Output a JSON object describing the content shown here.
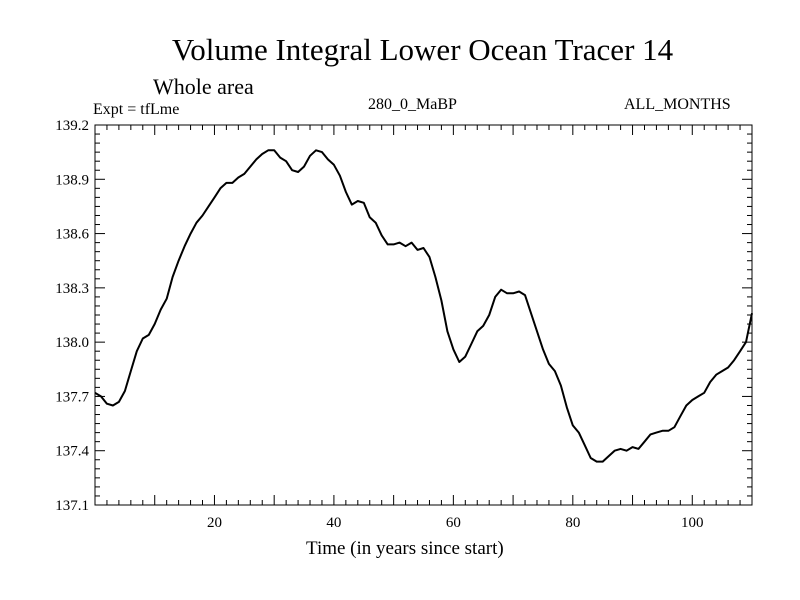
{
  "chart_data": {
    "type": "line",
    "title": "Volume Integral Lower Ocean Tracer 14",
    "subtitle": "Whole area",
    "experiment_label": "Expt = tfLme",
    "period_label": "280_0_MaBP",
    "months_label": "ALL_MONTHS",
    "xlabel": "Time (in years since start)",
    "ylabel": "",
    "xlim": [
      0,
      110
    ],
    "ylim": [
      137.1,
      139.2
    ],
    "x_ticks": [
      20,
      40,
      60,
      80,
      100
    ],
    "x_tick_labels": [
      "20",
      "40",
      "60",
      "80",
      "100"
    ],
    "y_ticks": [
      137.1,
      137.4,
      137.7,
      138.0,
      138.3,
      138.6,
      138.9,
      139.2
    ],
    "y_tick_labels": [
      "137.1",
      "137.4",
      "137.7",
      "138.0",
      "138.3",
      "138.6",
      "138.9",
      "139.2"
    ],
    "series": [
      {
        "name": "tfLme",
        "color": "#000000",
        "x": [
          0,
          1,
          2,
          3,
          4,
          5,
          6,
          7,
          8,
          9,
          10,
          11,
          12,
          13,
          14,
          15,
          16,
          17,
          18,
          19,
          20,
          21,
          22,
          23,
          24,
          25,
          26,
          27,
          28,
          29,
          30,
          31,
          32,
          33,
          34,
          35,
          36,
          37,
          38,
          39,
          40,
          41,
          42,
          43,
          44,
          45,
          46,
          47,
          48,
          49,
          50,
          51,
          52,
          53,
          54,
          55,
          56,
          57,
          58,
          59,
          60,
          61,
          62,
          63,
          64,
          65,
          66,
          67,
          68,
          69,
          70,
          71,
          72,
          73,
          74,
          75,
          76,
          77,
          78,
          79,
          80,
          81,
          82,
          83,
          84,
          85,
          86,
          87,
          88,
          89,
          90,
          91,
          92,
          93,
          94,
          95,
          96,
          97,
          98,
          99,
          100,
          101,
          102,
          103,
          104,
          105,
          106,
          107,
          108,
          109,
          110
        ],
        "y": [
          137.72,
          137.7,
          137.66,
          137.65,
          137.67,
          137.73,
          137.84,
          137.95,
          138.02,
          138.04,
          138.1,
          138.18,
          138.24,
          138.36,
          138.45,
          138.53,
          138.6,
          138.66,
          138.7,
          138.75,
          138.8,
          138.85,
          138.88,
          138.88,
          138.91,
          138.93,
          138.97,
          139.01,
          139.04,
          139.06,
          139.06,
          139.02,
          139.0,
          138.95,
          138.94,
          138.97,
          139.03,
          139.06,
          139.05,
          139.01,
          138.98,
          138.92,
          138.83,
          138.76,
          138.78,
          138.77,
          138.69,
          138.66,
          138.59,
          138.54,
          138.54,
          138.55,
          138.53,
          138.55,
          138.51,
          138.52,
          138.47,
          138.36,
          138.23,
          138.06,
          137.96,
          137.89,
          137.92,
          137.99,
          138.06,
          138.09,
          138.15,
          138.25,
          138.29,
          138.27,
          138.27,
          138.28,
          138.26,
          138.16,
          138.06,
          137.96,
          137.88,
          137.84,
          137.76,
          137.64,
          137.54,
          137.5,
          137.43,
          137.36,
          137.34,
          137.34,
          137.37,
          137.4,
          137.41,
          137.4,
          137.42,
          137.41,
          137.45,
          137.49,
          137.5,
          137.51,
          137.51,
          137.53,
          137.59,
          137.65,
          137.68,
          137.7,
          137.72,
          137.78,
          137.82,
          137.84,
          137.86,
          137.9,
          137.95,
          138.0,
          138.16
        ]
      }
    ]
  }
}
